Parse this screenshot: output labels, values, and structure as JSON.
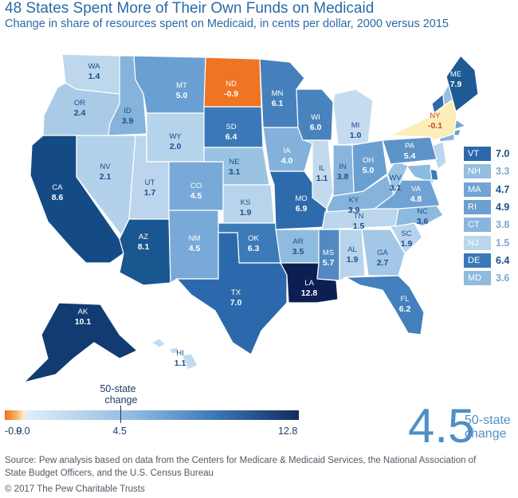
{
  "title": "48 States Spent More of Their Own Funds on Medicaid",
  "subtitle": "Change in share of resources spent on Medicaid, in cents per dollar, 2000 versus 2015",
  "chart_data": {
    "type": "choropleth",
    "unit": "cents per dollar",
    "states": [
      {
        "abbr": "WA",
        "value": "1.4",
        "fill": "#bdd7ec"
      },
      {
        "abbr": "OR",
        "value": "2.4",
        "fill": "#a9cbe8"
      },
      {
        "abbr": "CA",
        "value": "8.6",
        "fill": "#154b85"
      },
      {
        "abbr": "ID",
        "value": "3.9",
        "fill": "#86b3dc"
      },
      {
        "abbr": "NV",
        "value": "2.1",
        "fill": "#b3d1eb"
      },
      {
        "abbr": "MT",
        "value": "5.0",
        "fill": "#6a9fd2"
      },
      {
        "abbr": "WY",
        "value": "2.0",
        "fill": "#b6d3ec"
      },
      {
        "abbr": "UT",
        "value": "1.7",
        "fill": "#bad5ed"
      },
      {
        "abbr": "AZ",
        "value": "8.1",
        "fill": "#1a568f"
      },
      {
        "abbr": "CO",
        "value": "4.5",
        "fill": "#78a9d8"
      },
      {
        "abbr": "NM",
        "value": "4.5",
        "fill": "#78a9d8"
      },
      {
        "abbr": "ND",
        "value": "-0.9",
        "fill": "#ef7423"
      },
      {
        "abbr": "SD",
        "value": "6.4",
        "fill": "#3a78b7"
      },
      {
        "abbr": "NE",
        "value": "3.1",
        "fill": "#9ac2e3"
      },
      {
        "abbr": "KS",
        "value": "1.9",
        "fill": "#b8d4ec"
      },
      {
        "abbr": "OK",
        "value": "6.3",
        "fill": "#3c7ab8"
      },
      {
        "abbr": "TX",
        "value": "7.0",
        "fill": "#2c69ac"
      },
      {
        "abbr": "MN",
        "value": "6.1",
        "fill": "#4580bd"
      },
      {
        "abbr": "IA",
        "value": "4.0",
        "fill": "#83b1db"
      },
      {
        "abbr": "MO",
        "value": "6.9",
        "fill": "#2e6bad"
      },
      {
        "abbr": "AR",
        "value": "3.5",
        "fill": "#90bbe0"
      },
      {
        "abbr": "LA",
        "value": "12.8",
        "fill": "#0d1f52"
      },
      {
        "abbr": "WI",
        "value": "6.0",
        "fill": "#4883be"
      },
      {
        "abbr": "IL",
        "value": "1.1",
        "fill": "#c3daee"
      },
      {
        "abbr": "MI",
        "value": "1.0",
        "fill": "#c5dcef"
      },
      {
        "abbr": "IN",
        "value": "3.8",
        "fill": "#89b5dd"
      },
      {
        "abbr": "OH",
        "value": "5.0",
        "fill": "#6a9fd2"
      },
      {
        "abbr": "KY",
        "value": "3.9",
        "fill": "#86b3dc"
      },
      {
        "abbr": "TN",
        "value": "1.5",
        "fill": "#bbd6ed"
      },
      {
        "abbr": "MS",
        "value": "5.7",
        "fill": "#5289c2"
      },
      {
        "abbr": "AL",
        "value": "1.9",
        "fill": "#b8d4ec"
      },
      {
        "abbr": "GA",
        "value": "2.7",
        "fill": "#a3c7e6"
      },
      {
        "abbr": "FL",
        "value": "6.2",
        "fill": "#4380bc"
      },
      {
        "abbr": "SC",
        "value": "1.9",
        "fill": "#b8d4ec"
      },
      {
        "abbr": "NC",
        "value": "3.6",
        "fill": "#8dbadf"
      },
      {
        "abbr": "VA",
        "value": "4.8",
        "fill": "#70a3d4"
      },
      {
        "abbr": "WV",
        "value": "3.1",
        "fill": "#9ac2e3"
      },
      {
        "abbr": "PA",
        "value": "5.4",
        "fill": "#5c94c9"
      },
      {
        "abbr": "NY",
        "value": "-0.1",
        "fill": "#fbeeb8"
      },
      {
        "abbr": "ME",
        "value": "7.9",
        "fill": "#1e5a94"
      },
      {
        "abbr": "AK",
        "value": "10.1",
        "fill": "#123b72"
      },
      {
        "abbr": "HI",
        "value": "1.1",
        "fill": "#c3daee"
      }
    ],
    "inset_states": [
      {
        "abbr": "VT",
        "value": "7.0",
        "fill": "#2c69ac"
      },
      {
        "abbr": "NH",
        "value": "3.3",
        "fill": "#95bee1"
      },
      {
        "abbr": "MA",
        "value": "4.7",
        "fill": "#72a5d5"
      },
      {
        "abbr": "RI",
        "value": "4.9",
        "fill": "#6c9fd2"
      },
      {
        "abbr": "CT",
        "value": "3.8",
        "fill": "#89b5dd"
      },
      {
        "abbr": "NJ",
        "value": "1.5",
        "fill": "#bbd6ed"
      },
      {
        "abbr": "DE",
        "value": "6.4",
        "fill": "#3a78b7"
      },
      {
        "abbr": "MD",
        "value": "3.6",
        "fill": "#8dbadf"
      }
    ],
    "scale": {
      "min": -0.9,
      "max": 12.8,
      "ticks": [
        "-0.9",
        "0.0",
        "4.5",
        "12.8"
      ],
      "marker": {
        "value": 4.5,
        "label_line1": "50-state",
        "label_line2": "change"
      }
    },
    "national": {
      "value": "4.5",
      "label_line1": "50-state",
      "label_line2": "change"
    }
  },
  "source": "Source: Pew analysis based on data from the Centers for Medicare & Medicaid Services, the National Association of State Budget Officers, and the U.S. Census Bureau",
  "copyright": "© 2017 The Pew Charitable Trusts"
}
